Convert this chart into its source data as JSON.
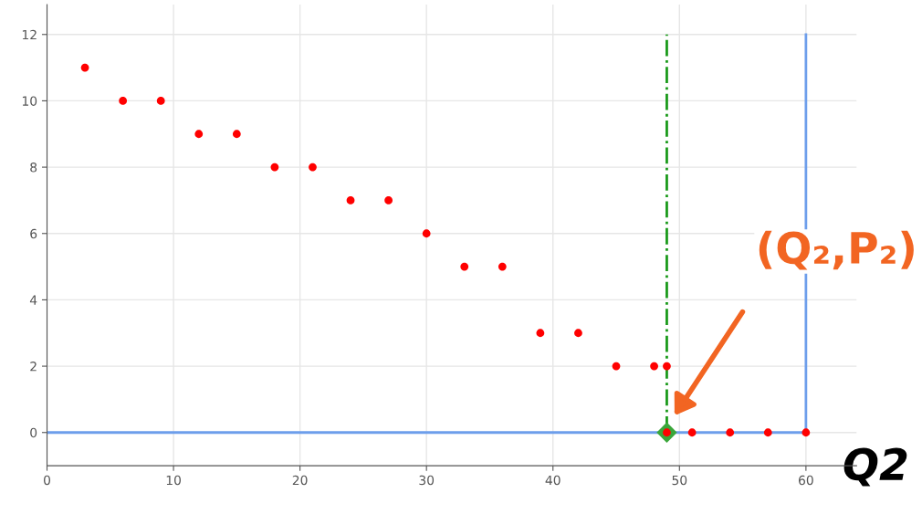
{
  "chart_data": {
    "type": "scatter",
    "xlabel": "Q2",
    "series": [
      {
        "type": "line",
        "color": "#6d9eeb",
        "x": [
          0,
          60,
          60
        ],
        "values": [
          0,
          0,
          12
        ],
        "marker": "none",
        "line_style": "solid"
      },
      {
        "type": "line",
        "color": "#1a9a1a",
        "x": [
          49,
          49
        ],
        "values": [
          0,
          12
        ],
        "marker": "none",
        "line_style": "dashed"
      },
      {
        "color": "#ff0000",
        "marker": "circle",
        "x": [
          3,
          6,
          9,
          12,
          15,
          18,
          21,
          24,
          27,
          30,
          33,
          36,
          39,
          42,
          45,
          48,
          49,
          49,
          51,
          54,
          57,
          60
        ],
        "values": [
          11,
          10,
          10,
          9,
          9,
          8,
          8,
          7,
          7,
          6,
          5,
          5,
          3,
          3,
          2,
          2,
          2,
          0,
          0,
          0,
          0,
          0
        ]
      },
      {
        "type": "scatter",
        "color": "#3aa63a",
        "marker": "diamond",
        "x": [
          49
        ],
        "values": [
          0
        ]
      }
    ],
    "annotations": [
      "(Q₂,P₂)"
    ],
    "xlim": [
      0,
      64
    ],
    "ylim": [
      -1,
      12.9
    ],
    "xticks": [
      0,
      10,
      20,
      30,
      40,
      50,
      60
    ],
    "yticks": [
      0,
      2,
      4,
      6,
      8,
      10,
      12
    ],
    "grid": true
  }
}
